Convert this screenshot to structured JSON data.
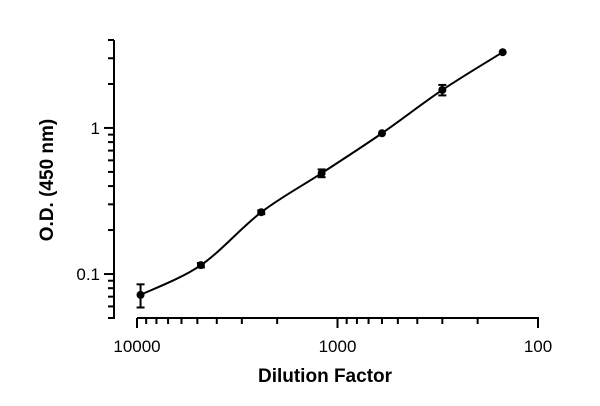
{
  "chart_data": {
    "type": "scatter",
    "xlabel": "Dilution Factor",
    "ylabel": "O.D. (450 nm)",
    "x_scale": "log",
    "x_reversed": true,
    "y_scale": "log",
    "xlim": [
      10000,
      100
    ],
    "ylim": [
      0.05,
      4
    ],
    "x_ticks": [
      {
        "value": 10000,
        "label": "10000"
      },
      {
        "value": 1000,
        "label": "1000"
      },
      {
        "value": 100,
        "label": "100"
      }
    ],
    "y_ticks": [
      {
        "value": 0.1,
        "label": "0.1"
      },
      {
        "value": 1,
        "label": "1"
      }
    ],
    "grid": false,
    "series": [
      {
        "points": [
          {
            "x": 9600,
            "y": 0.072,
            "err": 0.013
          },
          {
            "x": 4800,
            "y": 0.115,
            "err": 0.004
          },
          {
            "x": 2400,
            "y": 0.265,
            "err": 0.008
          },
          {
            "x": 1200,
            "y": 0.49,
            "err": 0.03
          },
          {
            "x": 600,
            "y": 0.92,
            "err": 0.02
          },
          {
            "x": 300,
            "y": 1.82,
            "err": 0.15
          },
          {
            "x": 150,
            "y": 3.3,
            "err": 0.05
          }
        ],
        "fit_curve": true,
        "color": "#000000"
      }
    ]
  }
}
